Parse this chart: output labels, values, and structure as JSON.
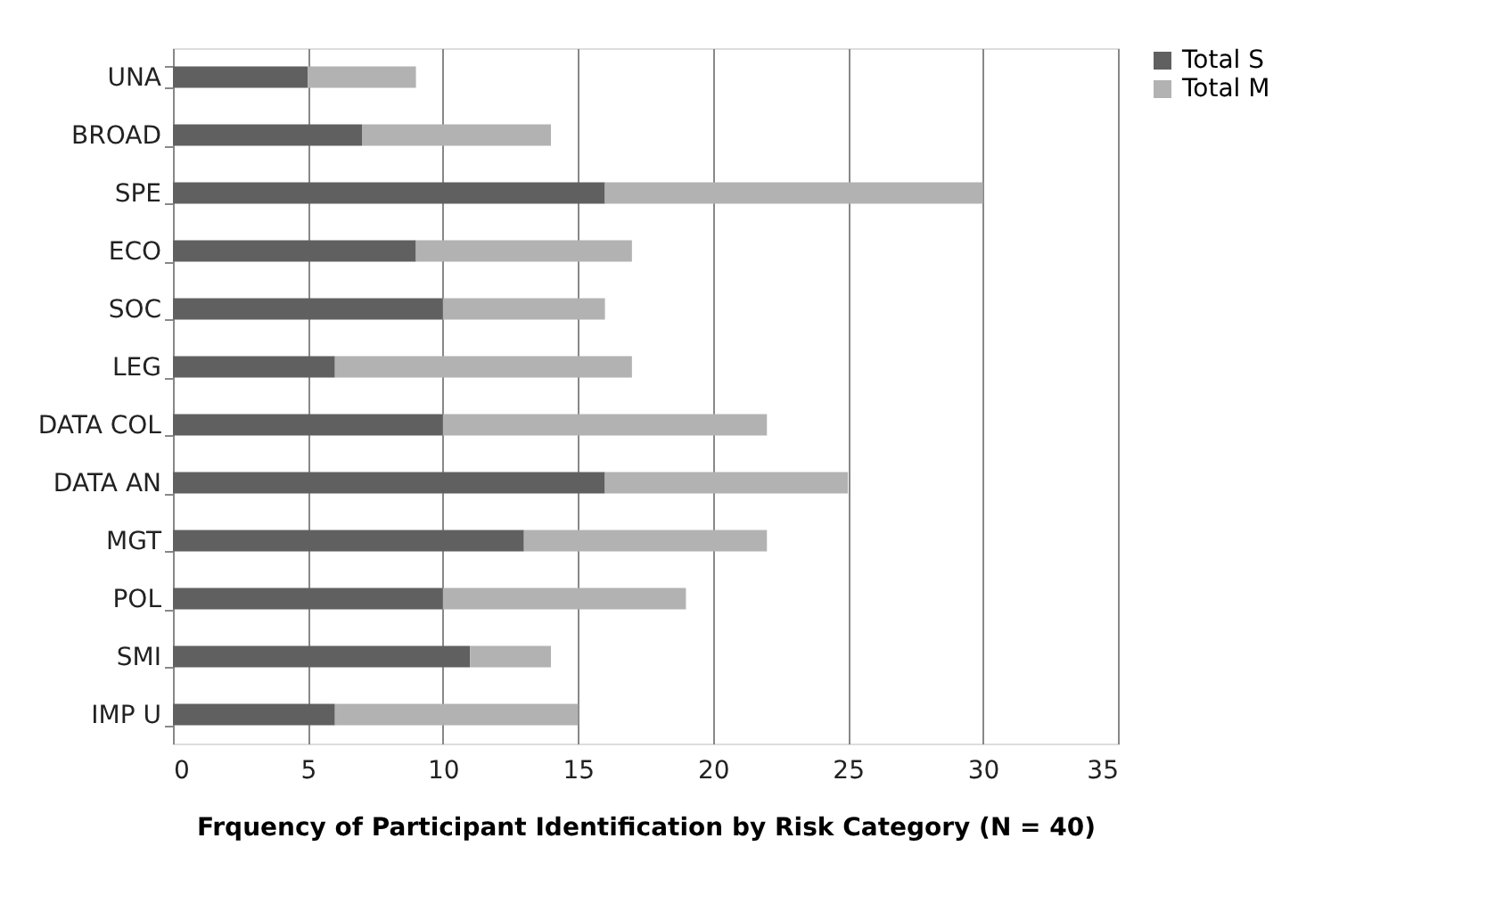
{
  "chart_data": {
    "type": "bar",
    "orientation": "horizontal",
    "stacked": true,
    "xlabel": "Frquency of Participant Identification by Risk Category (N = 40)",
    "categories": [
      "UNA",
      "BROAD",
      "SPE",
      "ECO",
      "SOC",
      "LEG",
      "DATA COL",
      "DATA AN",
      "MGT",
      "POL",
      "SMI",
      "IMP U"
    ],
    "series": [
      {
        "name": "Total S",
        "color": "#606060",
        "values": [
          5,
          7,
          16,
          9,
          10,
          6,
          10,
          16,
          13,
          10,
          11,
          6
        ]
      },
      {
        "name": "Total M",
        "color": "#b2b2b2",
        "values": [
          4,
          7,
          14,
          8,
          6,
          11,
          12,
          9,
          9,
          9,
          3,
          9
        ]
      }
    ],
    "xlim": [
      0,
      35
    ],
    "xticks": [
      0,
      5,
      10,
      15,
      20,
      25,
      30,
      35
    ],
    "grid": "x",
    "legend": "right"
  }
}
